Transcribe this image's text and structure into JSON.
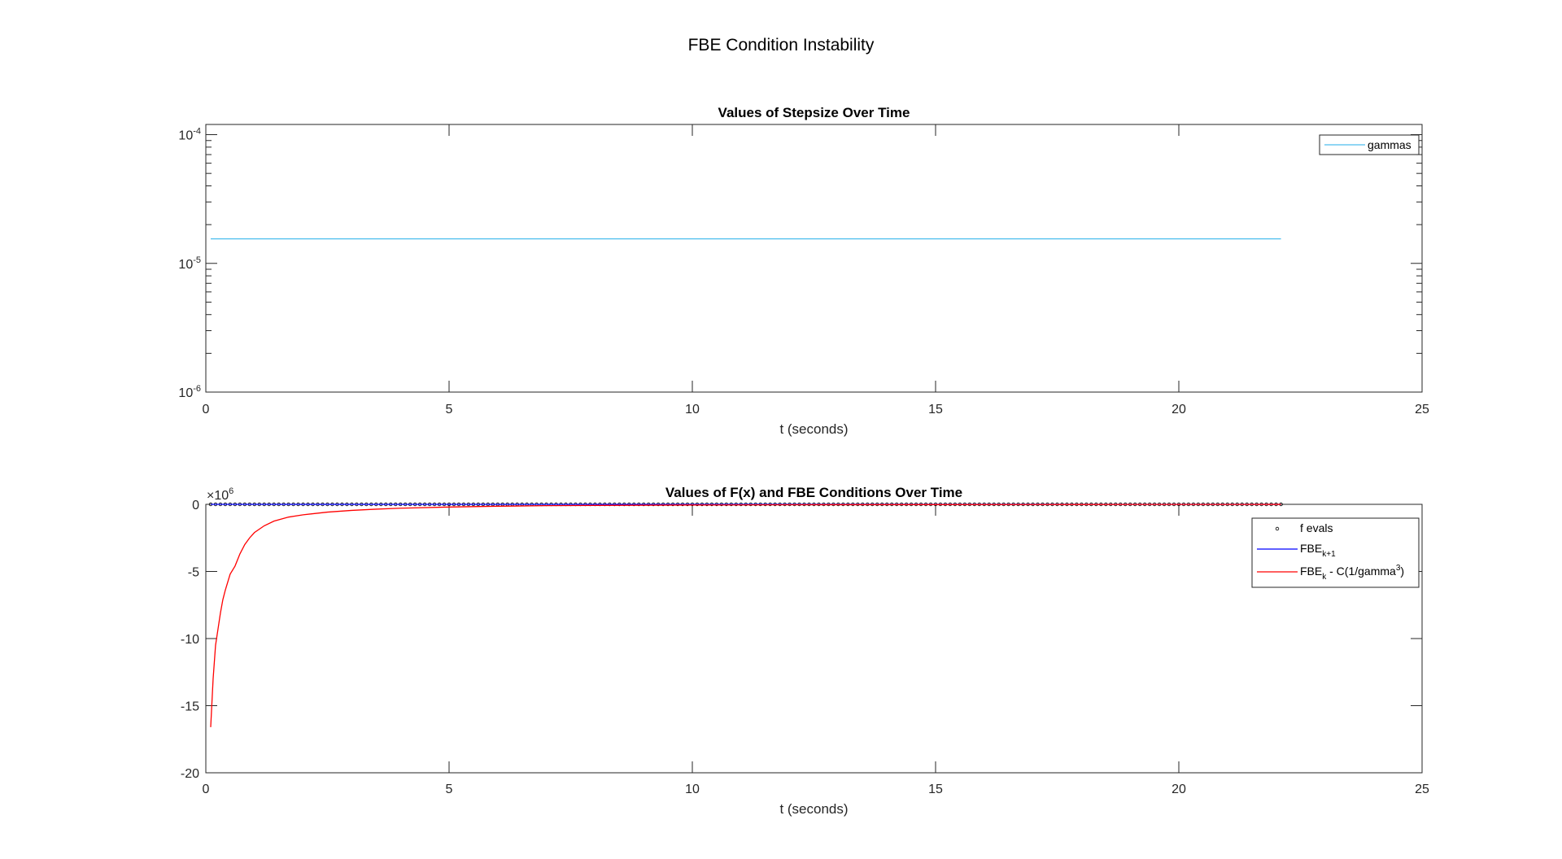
{
  "figure": {
    "suptitle": "FBE Condition Instability"
  },
  "chart_data": [
    {
      "type": "line",
      "title": "Values of Stepsize Over Time",
      "xlabel": "t (seconds)",
      "ylabel": "",
      "xlim": [
        0,
        25
      ],
      "ylim": [
        1e-06,
        0.00012
      ],
      "yscale": "log",
      "xticks": [
        0,
        5,
        10,
        15,
        20,
        25
      ],
      "xtick_labels": [
        "0",
        "5",
        "10",
        "15",
        "20",
        "25"
      ],
      "ytick_labels": [
        {
          "value": 1e-06,
          "base": "10",
          "exp": "-6"
        },
        {
          "value": 1e-05,
          "base": "10",
          "exp": "-5"
        },
        {
          "value": 0.0001,
          "base": "10",
          "exp": "-4"
        }
      ],
      "grid": false,
      "legend": {
        "position": "top-right",
        "entries": [
          {
            "label": "gammas",
            "marker": "line",
            "color": "#4DBEEE"
          }
        ]
      },
      "series": [
        {
          "name": "gammas",
          "color": "#4DBEEE",
          "x": [
            0.1,
            22.1
          ],
          "y": [
            1.55e-05,
            1.55e-05
          ]
        }
      ]
    },
    {
      "type": "line",
      "title": "Values of F(x) and FBE Conditions Over Time",
      "xlabel": "t (seconds)",
      "ylabel": "",
      "xlim": [
        0,
        25
      ],
      "ylim": [
        -20,
        0
      ],
      "y_multiplier": {
        "base": "×10",
        "exp": "6"
      },
      "xticks": [
        0,
        5,
        10,
        15,
        20,
        25
      ],
      "xtick_labels": [
        "0",
        "5",
        "10",
        "15",
        "20",
        "25"
      ],
      "yticks": [
        -20,
        -15,
        -10,
        -5,
        0
      ],
      "ytick_labels": [
        "-20",
        "-15",
        "-10",
        "-5",
        "0"
      ],
      "grid": false,
      "legend": {
        "position": "top-right",
        "entries": [
          {
            "label": "f evals",
            "marker": "circle",
            "color": "#000000"
          },
          {
            "label": "FBE",
            "sub": "k+1",
            "marker": "line",
            "color": "#0000FF"
          },
          {
            "label": "FBE",
            "sub": "k",
            "rest": " - C(1/gamma",
            "sup": "3",
            "tail": ")",
            "marker": "line",
            "color": "#FF0000"
          }
        ]
      },
      "series": [
        {
          "name": "f evals",
          "color": "#000000",
          "marker": "circle",
          "x_start": 0.1,
          "x_end": 22.1,
          "x_step": 0.1,
          "y_value": 0
        },
        {
          "name": "FBE_k+1",
          "color": "#0000FF",
          "x": [
            0.1,
            22.1
          ],
          "y": [
            0,
            0
          ]
        },
        {
          "name": "FBE_k - C(1/gamma^3)",
          "color": "#FF0000",
          "x": [
            0.1,
            0.15,
            0.2,
            0.25,
            0.3,
            0.35,
            0.4,
            0.5,
            0.6,
            0.7,
            0.8,
            0.9,
            1.0,
            1.2,
            1.4,
            1.7,
            2.0,
            2.5,
            3.0,
            3.5,
            4.0,
            5.0,
            6.0,
            7.0,
            8.0,
            10.0,
            12.0,
            15.0,
            18.0,
            22.1
          ],
          "y": [
            -16.6,
            -13.0,
            -10.5,
            -9.3,
            -8.1,
            -7.1,
            -6.4,
            -5.2,
            -4.6,
            -3.7,
            -3.0,
            -2.5,
            -2.1,
            -1.6,
            -1.25,
            -0.95,
            -0.78,
            -0.58,
            -0.45,
            -0.36,
            -0.29,
            -0.2,
            -0.14,
            -0.1,
            -0.08,
            -0.05,
            -0.03,
            -0.02,
            -0.01,
            -0.005
          ]
        }
      ]
    }
  ]
}
